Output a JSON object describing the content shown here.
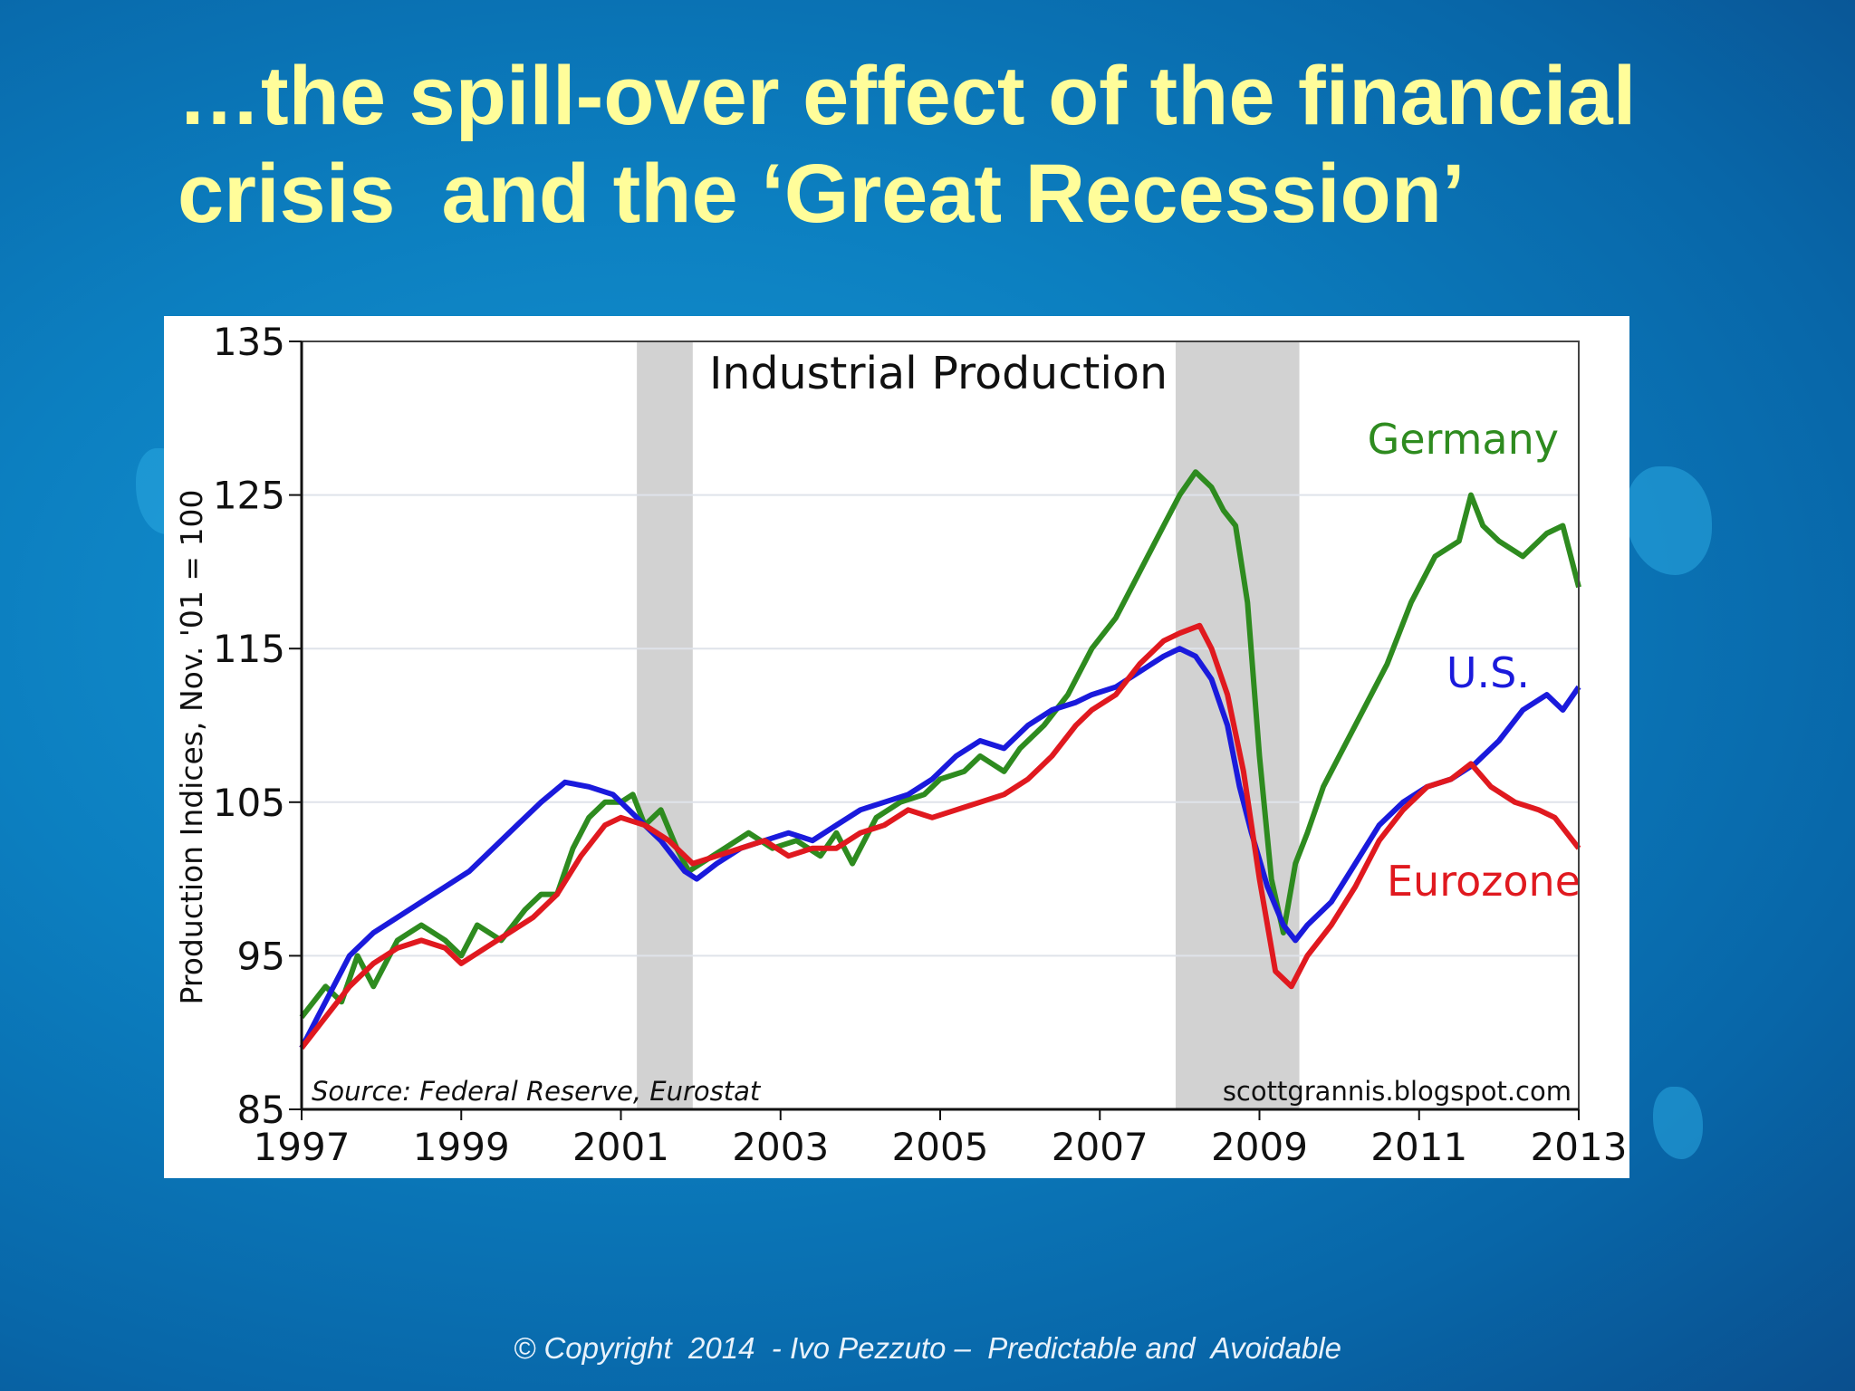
{
  "slide": {
    "title_line1": "…the spill-over effect of the financial",
    "title_line2": "crisis  and the ‘Great Recession’",
    "footer": "© Copyright  2014  - Ivo Pezzuto –  Predictable and  Avoidable"
  },
  "chart_data": {
    "type": "line",
    "title": "Industrial Production",
    "ylabel": "Production Indices, Nov. '01 = 100",
    "xlabel": "",
    "xlim": [
      1997,
      2013
    ],
    "ylim": [
      85,
      135
    ],
    "x_ticks": [
      "1997",
      "1999",
      "2001",
      "2003",
      "2005",
      "2007",
      "2009",
      "2011",
      "2013"
    ],
    "y_ticks": [
      "85",
      "95",
      "105",
      "115",
      "125",
      "135"
    ],
    "grid": true,
    "source_note": "Source: Federal Reserve, Eurostat",
    "credit": "scottgrannis.blogspot.com",
    "recessions": [
      [
        2001.2,
        2001.9
      ],
      [
        2007.95,
        2009.5
      ]
    ],
    "series": [
      {
        "name": "Germany",
        "color": "#2e8b1f",
        "points": [
          [
            1997.0,
            91
          ],
          [
            1997.3,
            93
          ],
          [
            1997.5,
            92
          ],
          [
            1997.7,
            95
          ],
          [
            1997.9,
            93
          ],
          [
            1998.2,
            96
          ],
          [
            1998.5,
            97
          ],
          [
            1998.8,
            96
          ],
          [
            1999.0,
            95
          ],
          [
            1999.2,
            97
          ],
          [
            1999.5,
            96
          ],
          [
            1999.8,
            98
          ],
          [
            2000.0,
            99
          ],
          [
            2000.2,
            99
          ],
          [
            2000.4,
            102
          ],
          [
            2000.6,
            104
          ],
          [
            2000.8,
            105
          ],
          [
            2001.0,
            105
          ],
          [
            2001.15,
            105.5
          ],
          [
            2001.3,
            103.5
          ],
          [
            2001.5,
            104.5
          ],
          [
            2001.7,
            102
          ],
          [
            2001.85,
            100.5
          ],
          [
            2002.0,
            101
          ],
          [
            2002.3,
            102
          ],
          [
            2002.6,
            103
          ],
          [
            2002.9,
            102
          ],
          [
            2003.2,
            102.5
          ],
          [
            2003.5,
            101.5
          ],
          [
            2003.7,
            103
          ],
          [
            2003.9,
            101
          ],
          [
            2004.2,
            104
          ],
          [
            2004.5,
            105
          ],
          [
            2004.8,
            105.5
          ],
          [
            2005.0,
            106.5
          ],
          [
            2005.3,
            107
          ],
          [
            2005.5,
            108
          ],
          [
            2005.8,
            107
          ],
          [
            2006.0,
            108.5
          ],
          [
            2006.3,
            110
          ],
          [
            2006.6,
            112
          ],
          [
            2006.9,
            115
          ],
          [
            2007.2,
            117
          ],
          [
            2007.4,
            119
          ],
          [
            2007.6,
            121
          ],
          [
            2007.8,
            123
          ],
          [
            2008.0,
            125
          ],
          [
            2008.2,
            126.5
          ],
          [
            2008.4,
            125.5
          ],
          [
            2008.55,
            124
          ],
          [
            2008.7,
            123
          ],
          [
            2008.85,
            118
          ],
          [
            2009.0,
            108
          ],
          [
            2009.15,
            100
          ],
          [
            2009.3,
            96.5
          ],
          [
            2009.45,
            101
          ],
          [
            2009.6,
            103
          ],
          [
            2009.8,
            106
          ],
          [
            2010.0,
            108
          ],
          [
            2010.3,
            111
          ],
          [
            2010.6,
            114
          ],
          [
            2010.9,
            118
          ],
          [
            2011.2,
            121
          ],
          [
            2011.5,
            122
          ],
          [
            2011.65,
            125
          ],
          [
            2011.8,
            123
          ],
          [
            2012.0,
            122
          ],
          [
            2012.3,
            121
          ],
          [
            2012.6,
            122.5
          ],
          [
            2012.8,
            123
          ],
          [
            2012.9,
            121
          ],
          [
            2013.0,
            119
          ]
        ]
      },
      {
        "name": "U.S.",
        "color": "#1a1adc",
        "points": [
          [
            1997.0,
            89
          ],
          [
            1997.3,
            92
          ],
          [
            1997.6,
            95
          ],
          [
            1997.9,
            96.5
          ],
          [
            1998.2,
            97.5
          ],
          [
            1998.5,
            98.5
          ],
          [
            1998.8,
            99.5
          ],
          [
            1999.1,
            100.5
          ],
          [
            1999.4,
            102
          ],
          [
            1999.7,
            103.5
          ],
          [
            2000.0,
            105
          ],
          [
            2000.3,
            106.3
          ],
          [
            2000.6,
            106
          ],
          [
            2000.9,
            105.5
          ],
          [
            2001.2,
            104
          ],
          [
            2001.5,
            102.5
          ],
          [
            2001.8,
            100.5
          ],
          [
            2001.95,
            100
          ],
          [
            2002.2,
            101
          ],
          [
            2002.5,
            102
          ],
          [
            2002.8,
            102.5
          ],
          [
            2003.1,
            103
          ],
          [
            2003.4,
            102.5
          ],
          [
            2003.7,
            103.5
          ],
          [
            2004.0,
            104.5
          ],
          [
            2004.3,
            105
          ],
          [
            2004.6,
            105.5
          ],
          [
            2004.9,
            106.5
          ],
          [
            2005.2,
            108
          ],
          [
            2005.5,
            109
          ],
          [
            2005.8,
            108.5
          ],
          [
            2006.1,
            110
          ],
          [
            2006.4,
            111
          ],
          [
            2006.7,
            111.5
          ],
          [
            2006.9,
            112
          ],
          [
            2007.2,
            112.5
          ],
          [
            2007.5,
            113.5
          ],
          [
            2007.8,
            114.5
          ],
          [
            2008.0,
            115
          ],
          [
            2008.2,
            114.5
          ],
          [
            2008.4,
            113
          ],
          [
            2008.6,
            110
          ],
          [
            2008.75,
            106
          ],
          [
            2008.9,
            103
          ],
          [
            2009.1,
            99.5
          ],
          [
            2009.3,
            97
          ],
          [
            2009.45,
            96
          ],
          [
            2009.6,
            97
          ],
          [
            2009.9,
            98.5
          ],
          [
            2010.2,
            101
          ],
          [
            2010.5,
            103.5
          ],
          [
            2010.8,
            105
          ],
          [
            2011.1,
            106
          ],
          [
            2011.4,
            106.5
          ],
          [
            2011.7,
            107.5
          ],
          [
            2012.0,
            109
          ],
          [
            2012.3,
            111
          ],
          [
            2012.6,
            112
          ],
          [
            2012.8,
            111
          ],
          [
            2013.0,
            112.5
          ]
        ]
      },
      {
        "name": "Eurozone",
        "color": "#e0191f",
        "points": [
          [
            1997.0,
            89
          ],
          [
            1997.3,
            91
          ],
          [
            1997.6,
            93
          ],
          [
            1997.9,
            94.5
          ],
          [
            1998.2,
            95.5
          ],
          [
            1998.5,
            96
          ],
          [
            1998.8,
            95.5
          ],
          [
            1999.0,
            94.5
          ],
          [
            1999.3,
            95.5
          ],
          [
            1999.6,
            96.5
          ],
          [
            1999.9,
            97.5
          ],
          [
            2000.2,
            99
          ],
          [
            2000.5,
            101.5
          ],
          [
            2000.8,
            103.5
          ],
          [
            2001.0,
            104
          ],
          [
            2001.3,
            103.5
          ],
          [
            2001.6,
            102.5
          ],
          [
            2001.9,
            101
          ],
          [
            2002.2,
            101.5
          ],
          [
            2002.5,
            102
          ],
          [
            2002.8,
            102.5
          ],
          [
            2003.1,
            101.5
          ],
          [
            2003.4,
            102
          ],
          [
            2003.7,
            102
          ],
          [
            2004.0,
            103
          ],
          [
            2004.3,
            103.5
          ],
          [
            2004.6,
            104.5
          ],
          [
            2004.9,
            104
          ],
          [
            2005.2,
            104.5
          ],
          [
            2005.5,
            105
          ],
          [
            2005.8,
            105.5
          ],
          [
            2006.1,
            106.5
          ],
          [
            2006.4,
            108
          ],
          [
            2006.7,
            110
          ],
          [
            2006.9,
            111
          ],
          [
            2007.2,
            112
          ],
          [
            2007.5,
            114
          ],
          [
            2007.8,
            115.5
          ],
          [
            2008.0,
            116
          ],
          [
            2008.25,
            116.5
          ],
          [
            2008.4,
            115
          ],
          [
            2008.6,
            112
          ],
          [
            2008.8,
            107
          ],
          [
            2009.0,
            100
          ],
          [
            2009.2,
            94
          ],
          [
            2009.4,
            93
          ],
          [
            2009.6,
            95
          ],
          [
            2009.9,
            97
          ],
          [
            2010.2,
            99.5
          ],
          [
            2010.5,
            102.5
          ],
          [
            2010.8,
            104.5
          ],
          [
            2011.1,
            106
          ],
          [
            2011.4,
            106.5
          ],
          [
            2011.65,
            107.5
          ],
          [
            2011.9,
            106
          ],
          [
            2012.2,
            105
          ],
          [
            2012.5,
            104.5
          ],
          [
            2012.7,
            104
          ],
          [
            2012.85,
            103
          ],
          [
            2013.0,
            102
          ]
        ]
      }
    ]
  }
}
